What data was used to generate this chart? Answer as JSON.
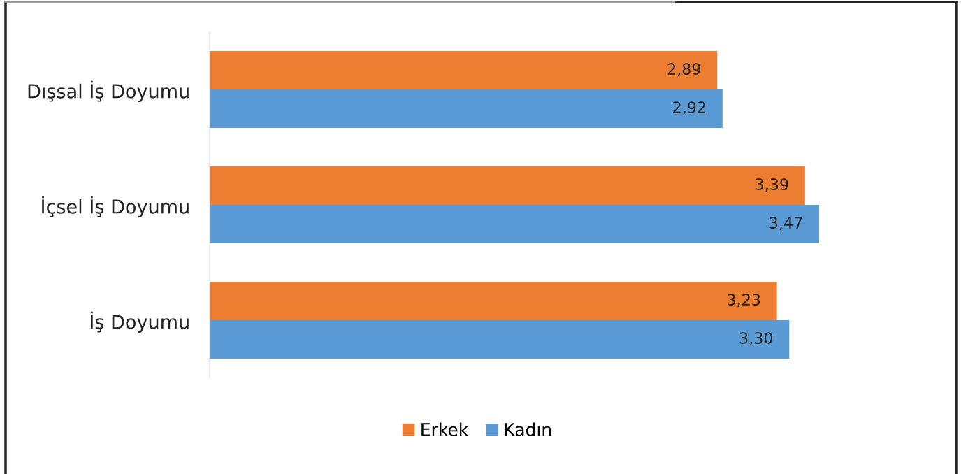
{
  "chart_data": {
    "type": "bar",
    "orientation": "horizontal",
    "categories": [
      "Dışsal İş Doyumu",
      "İçsel İş Doyumu",
      "İş Doyumu"
    ],
    "series": [
      {
        "name": "Erkek",
        "color": "#ed7d31",
        "values": [
          2.89,
          3.39,
          3.23
        ],
        "value_labels": [
          "2,89",
          "3,39",
          "3,23"
        ]
      },
      {
        "name": "Kadın",
        "color": "#5b9bd5",
        "values": [
          2.92,
          3.47,
          3.3
        ],
        "value_labels": [
          "2,92",
          "3,47",
          "3,30"
        ]
      }
    ],
    "tick_labels": "y",
    "grid": false,
    "legend": "bottom"
  }
}
